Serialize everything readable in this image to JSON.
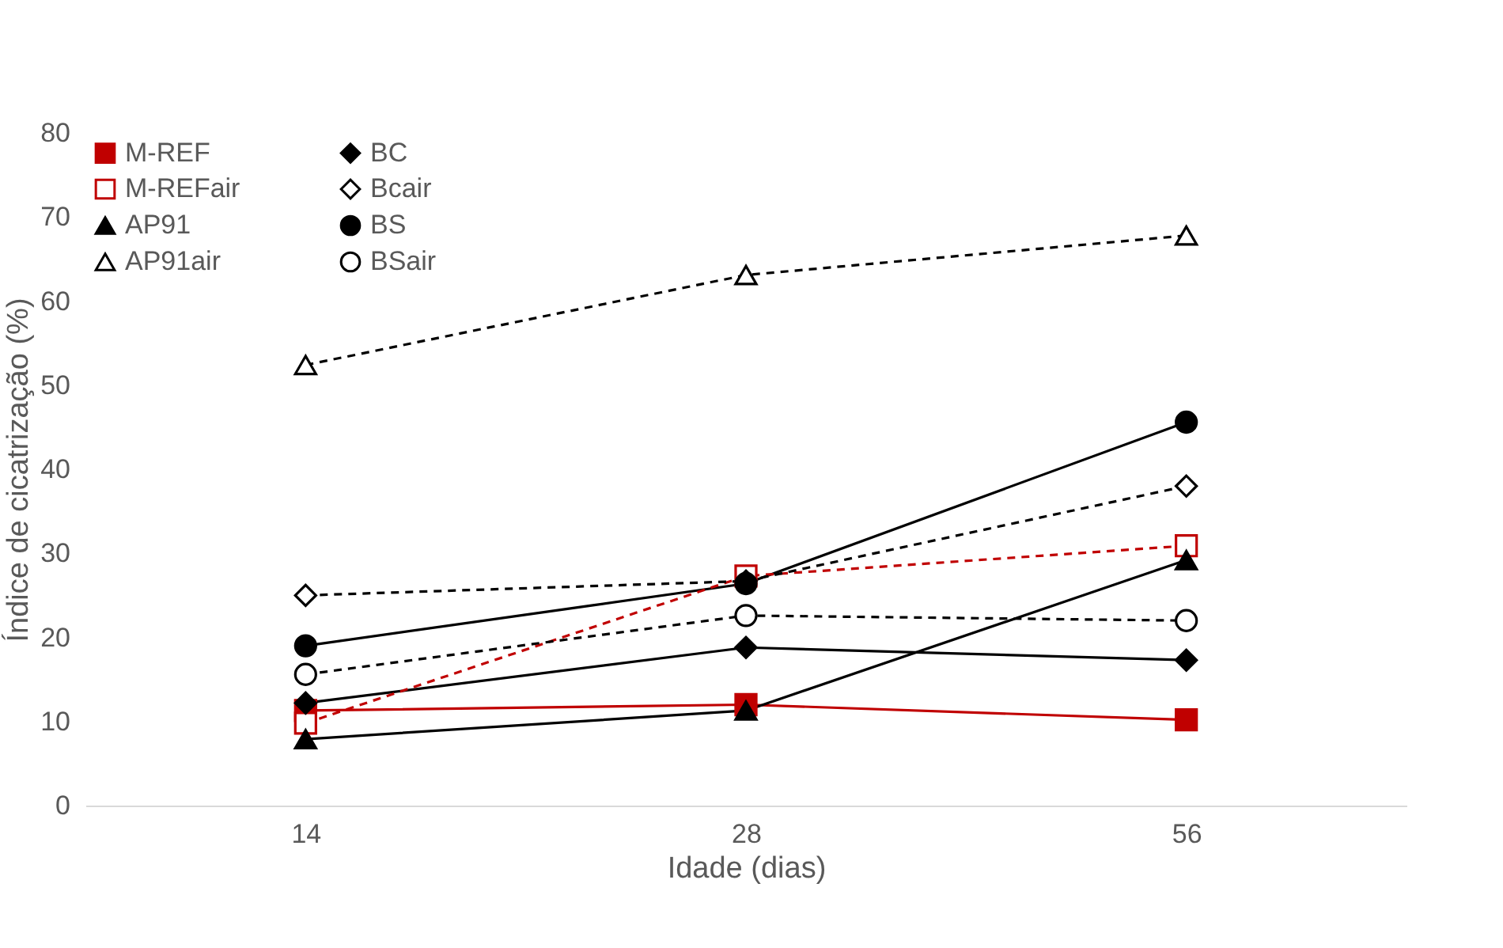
{
  "chart_data": {
    "type": "line",
    "xlabel": "Idade (dias)",
    "ylabel": "Índice de cicatrização (%)",
    "categories": [
      "14",
      "28",
      "56"
    ],
    "ylim": [
      0,
      80
    ],
    "yticks": [
      0,
      10,
      20,
      30,
      40,
      50,
      60,
      70,
      80
    ],
    "grid": false,
    "legend": "top left",
    "series": [
      {
        "name": "M-REF",
        "color": "#c00000",
        "marker": "square",
        "line_style": "solid",
        "values": [
          11.3,
          12.0,
          10.2
        ]
      },
      {
        "name": "M-REFair",
        "color": "#c00000",
        "marker": "square",
        "line_style": "dashed",
        "values": [
          9.8,
          27.3,
          30.9
        ]
      },
      {
        "name": "AP91",
        "color": "#000000",
        "marker": "triangle",
        "line_style": "solid",
        "values": [
          7.9,
          11.3,
          29.2
        ]
      },
      {
        "name": "AP91air",
        "color": "#000000",
        "marker": "triangle",
        "line_style": "dashed",
        "values": [
          52.4,
          63.1,
          67.8
        ]
      },
      {
        "name": "BC",
        "color": "#000000",
        "marker": "diamond",
        "line_style": "solid",
        "values": [
          12.2,
          18.8,
          17.3
        ]
      },
      {
        "name": "Bcair",
        "color": "#000000",
        "marker": "diamond",
        "line_style": "dashed",
        "values": [
          25.0,
          26.7,
          38.0
        ]
      },
      {
        "name": "BS",
        "color": "#000000",
        "marker": "circle",
        "line_style": "solid",
        "values": [
          19.0,
          26.4,
          45.6
        ]
      },
      {
        "name": "BSair",
        "color": "#000000",
        "marker": "circle",
        "line_style": "dashed",
        "values": [
          15.6,
          22.6,
          22.0
        ]
      }
    ]
  }
}
